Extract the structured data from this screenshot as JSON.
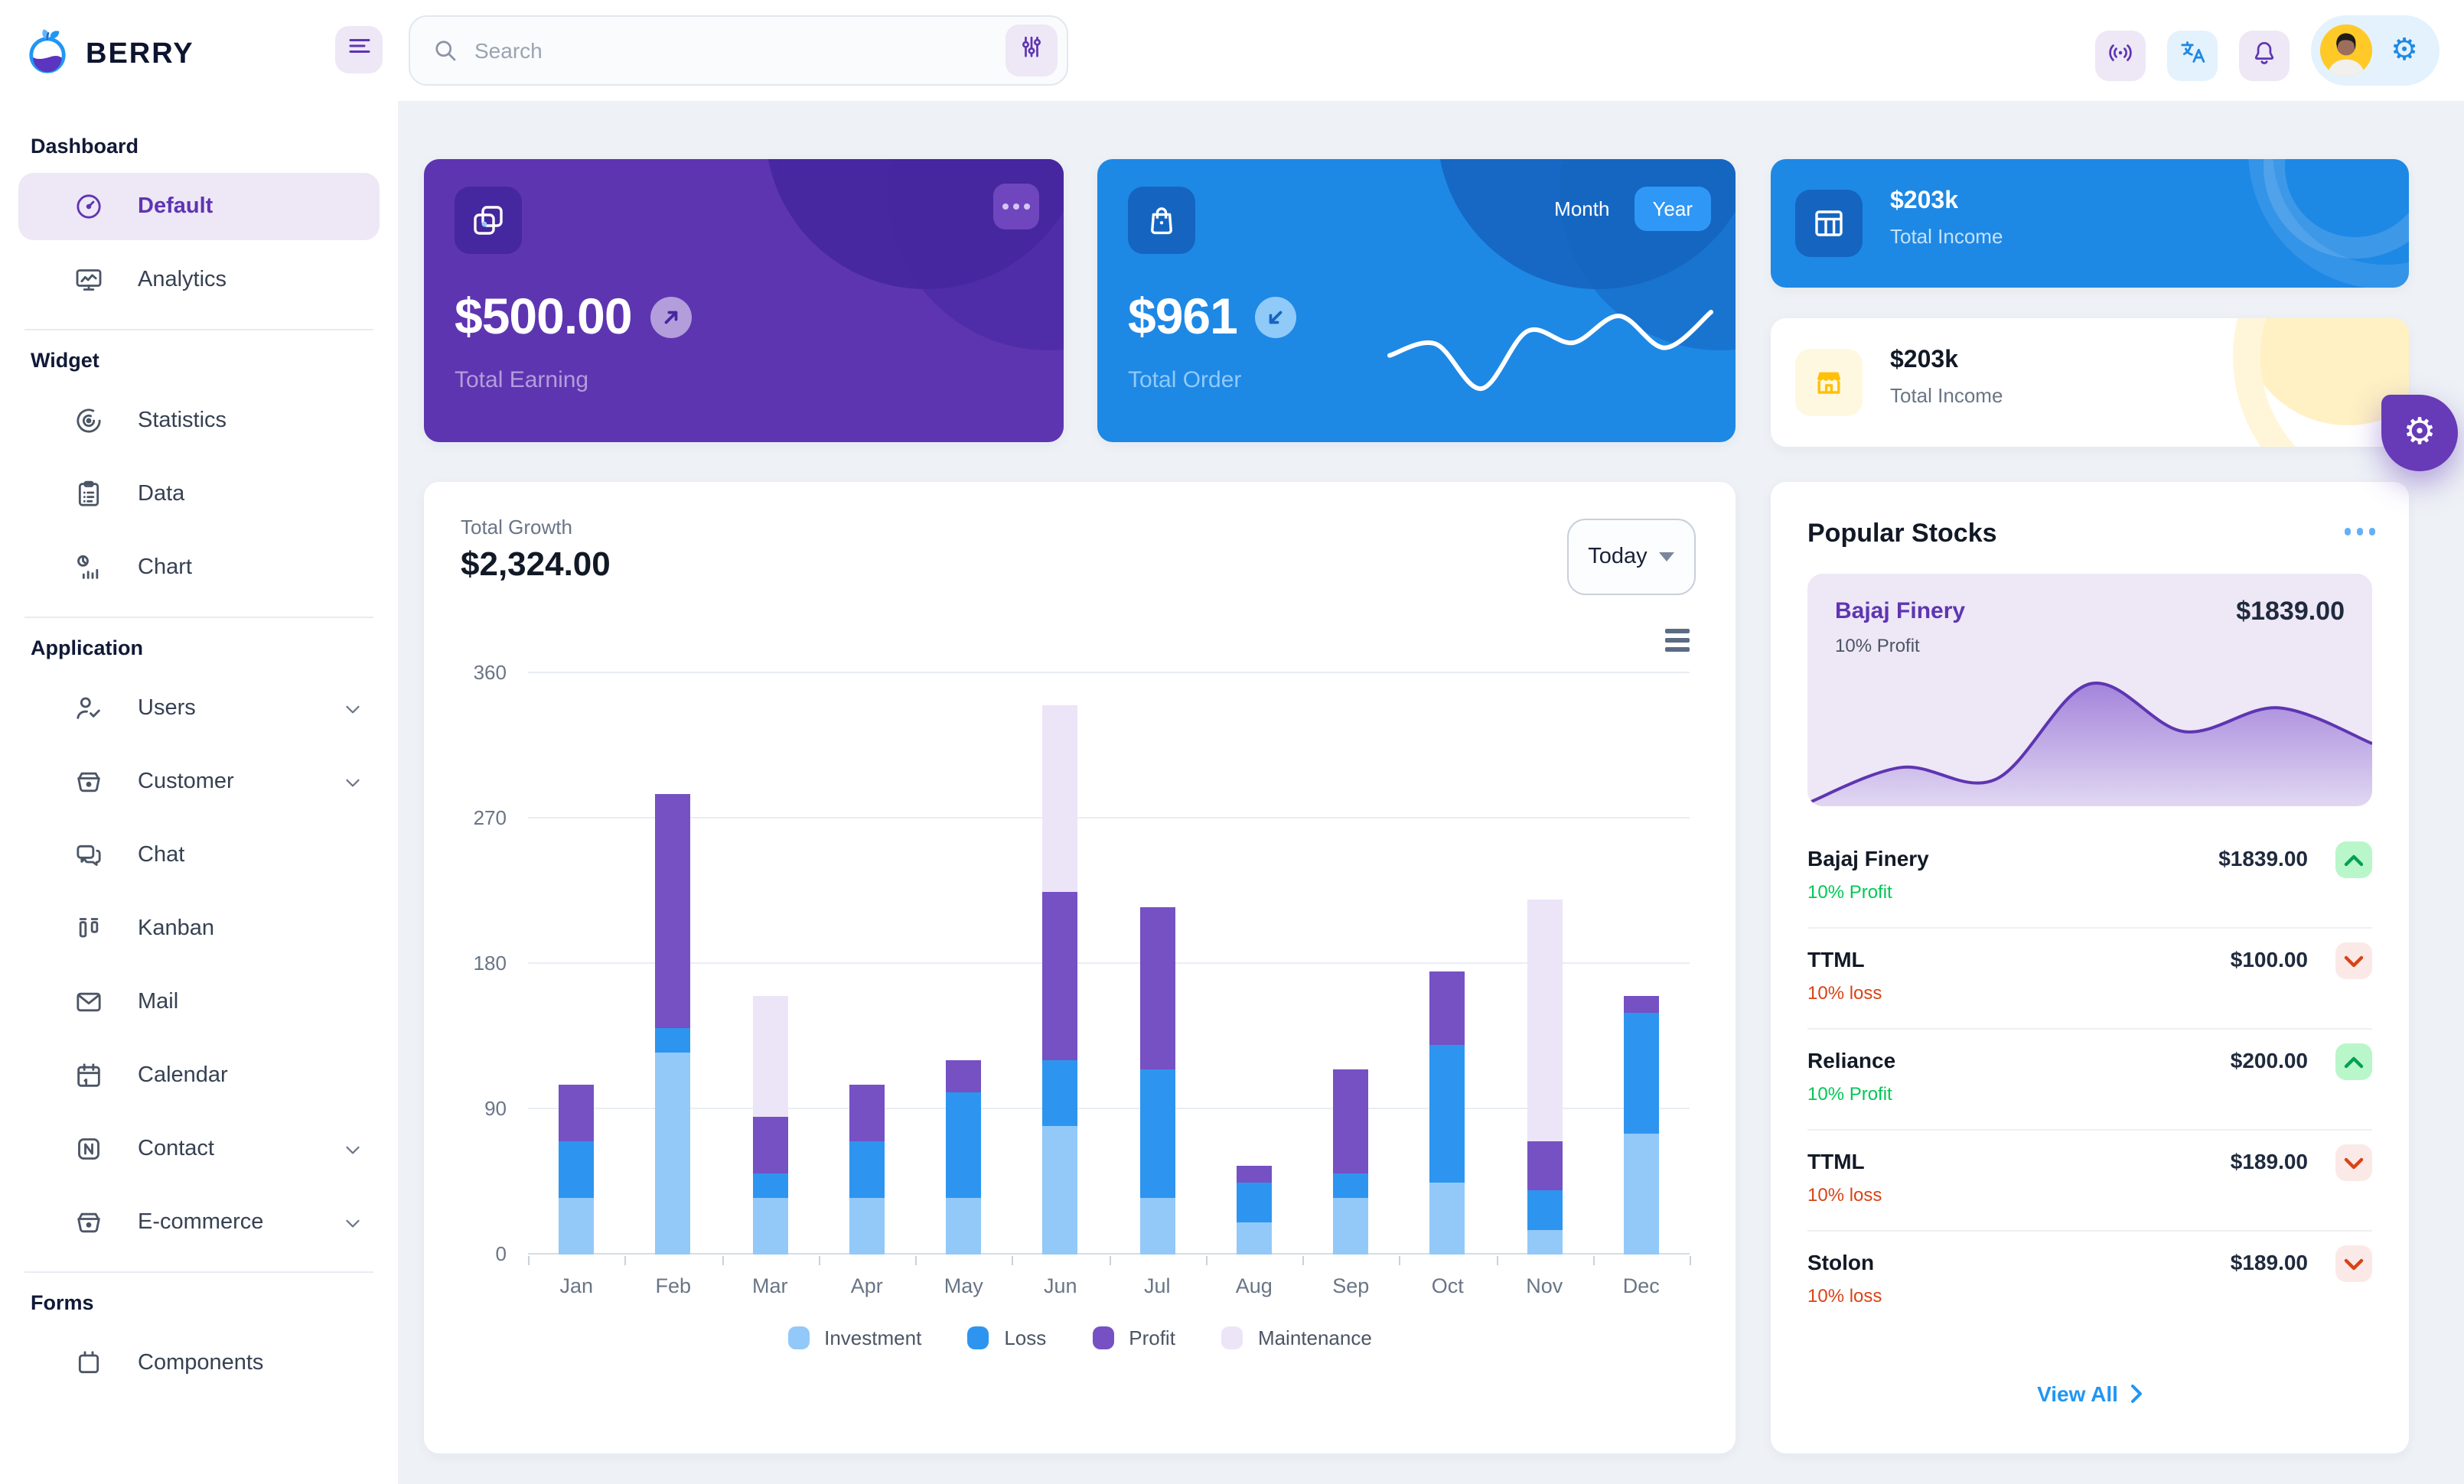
{
  "topbar": {
    "brand": "BERRY",
    "search": {
      "placeholder": "Search"
    }
  },
  "sidebar": {
    "sections": [
      {
        "heading": "Dashboard",
        "items": [
          {
            "label": "Default",
            "icon": "gauge-icon",
            "active": true
          },
          {
            "label": "Analytics",
            "icon": "monitor-icon"
          }
        ]
      },
      {
        "heading": "Widget",
        "items": [
          {
            "label": "Statistics",
            "icon": "radar-icon"
          },
          {
            "label": "Data",
            "icon": "clipboard-icon"
          },
          {
            "label": "Chart",
            "icon": "pie-bars-icon"
          }
        ]
      },
      {
        "heading": "Application",
        "items": [
          {
            "label": "Users",
            "icon": "user-check-icon",
            "expandable": true
          },
          {
            "label": "Customer",
            "icon": "basket-icon",
            "expandable": true
          },
          {
            "label": "Chat",
            "icon": "chat-icon"
          },
          {
            "label": "Kanban",
            "icon": "kanban-icon"
          },
          {
            "label": "Mail",
            "icon": "mail-icon"
          },
          {
            "label": "Calendar",
            "icon": "calendar-icon"
          },
          {
            "label": "Contact",
            "icon": "notebook-icon",
            "expandable": true
          },
          {
            "label": "E-commerce",
            "icon": "basket-icon",
            "expandable": true
          }
        ]
      },
      {
        "heading": "Forms",
        "items": [
          {
            "label": "Components",
            "icon": "components-icon",
            "partially_visible": true
          }
        ]
      }
    ]
  },
  "cards": {
    "earning": {
      "amount": "$500.00",
      "label": "Total Earning",
      "trend": "up"
    },
    "order": {
      "amount": "$961",
      "label": "Total Order",
      "trend": "down",
      "toggle": {
        "options": [
          "Month",
          "Year"
        ],
        "selected": "Year"
      }
    },
    "income_primary": {
      "amount": "$203k",
      "label": "Total Income"
    },
    "income_warning": {
      "amount": "$203k",
      "label": "Total Income"
    }
  },
  "growth": {
    "label": "Total Growth",
    "amount": "$2,324.00",
    "period_selector": "Today"
  },
  "stocks": {
    "title": "Popular Stocks",
    "featured": {
      "name": "Bajaj Finery",
      "change": "10% Profit",
      "price": "$1839.00"
    },
    "rows": [
      {
        "name": "Bajaj Finery",
        "price": "$1839.00",
        "change": "10% Profit",
        "direction": "up"
      },
      {
        "name": "TTML",
        "price": "$100.00",
        "change": "10% loss",
        "direction": "down"
      },
      {
        "name": "Reliance",
        "price": "$200.00",
        "change": "10% Profit",
        "direction": "up"
      },
      {
        "name": "TTML",
        "price": "$189.00",
        "change": "10% loss",
        "direction": "down"
      },
      {
        "name": "Stolon",
        "price": "$189.00",
        "change": "10% loss",
        "direction": "down"
      }
    ],
    "view_all": "View All"
  },
  "chart_data": [
    {
      "id": "total-growth-bar",
      "type": "bar",
      "stacked": true,
      "title": "Total Growth",
      "categories": [
        "Jan",
        "Feb",
        "Mar",
        "Apr",
        "May",
        "Jun",
        "Jul",
        "Aug",
        "Sep",
        "Oct",
        "Nov",
        "Dec"
      ],
      "series": [
        {
          "name": "Investment",
          "color": "#92c9f9",
          "values": [
            35,
            125,
            35,
            35,
            35,
            80,
            35,
            20,
            35,
            45,
            15,
            75
          ]
        },
        {
          "name": "Loss",
          "color": "#2d95ef",
          "values": [
            35,
            15,
            15,
            35,
            65,
            40,
            80,
            25,
            15,
            85,
            25,
            75
          ]
        },
        {
          "name": "Profit",
          "color": "#7551c3",
          "values": [
            35,
            145,
            35,
            35,
            20,
            105,
            100,
            10,
            65,
            45,
            30,
            10
          ]
        },
        {
          "name": "Maintenance",
          "color": "#ece4f7",
          "values": [
            0,
            0,
            75,
            0,
            0,
            115,
            0,
            0,
            0,
            0,
            150,
            0
          ]
        }
      ],
      "ylim": [
        0,
        360
      ],
      "yticks": [
        0,
        90,
        180,
        270,
        360
      ],
      "grid": true,
      "legend_position": "bottom"
    },
    {
      "id": "total-order-sparkline",
      "type": "line",
      "values": [
        35,
        44,
        9,
        54,
        45,
        66,
        41,
        69
      ],
      "color": "#ffffff"
    },
    {
      "id": "bajaj-area",
      "type": "area",
      "values": [
        0,
        15,
        10,
        50,
        30,
        40,
        25
      ],
      "line_color": "#5e35b1",
      "fill_from": "#8a63d2",
      "fill_to": "#ede7f6"
    }
  ],
  "colors": {
    "accent_purple": "#5e35b1",
    "accent_blue": "#1e88e5",
    "success_green": "#00c853",
    "loss_orange": "#d84315",
    "active_item_bg": "#ede7f6",
    "warning_amber": "#ffc107"
  }
}
